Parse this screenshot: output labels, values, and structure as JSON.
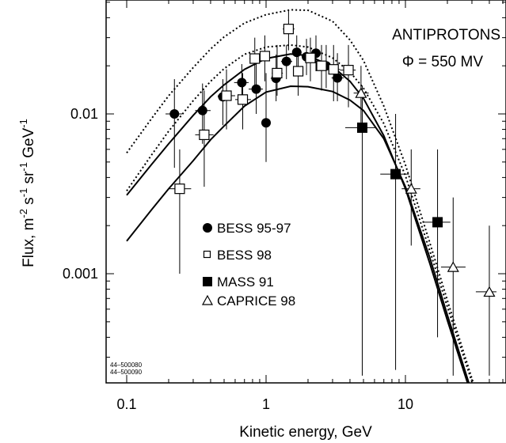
{
  "chart_data": {
    "type": "scatter",
    "title": "",
    "xlabel": "Kinetic energy, GeV",
    "ylabel_parts": [
      "Flux, m",
      "-2",
      " s",
      "-1",
      " sr",
      "-1",
      " GeV",
      "-1"
    ],
    "x_scale": "log",
    "y_scale": "log",
    "xlim": [
      0.1,
      45
    ],
    "ylim": [
      0.00012,
      0.06
    ],
    "x_tick_labels": [
      {
        "value": 0.1,
        "label": "0.1"
      },
      {
        "value": 1,
        "label": "1"
      },
      {
        "value": 10,
        "label": "10"
      }
    ],
    "y_tick_labels": [
      {
        "value": 0.001,
        "label": "0.001"
      },
      {
        "value": 0.01,
        "label": "0.01"
      }
    ],
    "annotations": {
      "species": "ANTIPROTONS",
      "potential": "Φ = 550 MV",
      "ids": [
        "44–500080",
        "44–500090"
      ]
    },
    "legend": [
      {
        "series": "BESS 95-97",
        "marker": "filled-circle",
        "label": "BESS 95-97"
      },
      {
        "series": "BESS 98",
        "marker": "open-square",
        "label": "BESS 98"
      },
      {
        "series": "MASS 91",
        "marker": "filled-square",
        "label": "MASS 91"
      },
      {
        "series": "CAPRICE 98",
        "marker": "open-triangle",
        "label": "CAPRICE 98"
      }
    ],
    "series": [
      {
        "name": "BESS 95-97",
        "marker": "filled-circle",
        "points": [
          {
            "x": 0.22,
            "y": 0.01,
            "xerr": [
              0.19,
              0.25
            ],
            "yerr": [
              0.0046,
              0.0165
            ]
          },
          {
            "x": 0.35,
            "y": 0.0105,
            "xerr": [
              0.31,
              0.4
            ],
            "yerr": [
              0.0065,
              0.0155
            ]
          },
          {
            "x": 0.49,
            "y": 0.0128,
            "xerr": [
              0.45,
              0.55
            ],
            "yerr": [
              0.0085,
              0.0165
            ]
          },
          {
            "x": 0.67,
            "y": 0.0157,
            "xerr": [
              0.59,
              0.75
            ],
            "yerr": [
              0.0115,
              0.0205
            ]
          },
          {
            "x": 0.85,
            "y": 0.0143,
            "xerr": [
              0.75,
              0.95
            ],
            "yerr": [
              0.01,
              0.021
            ]
          },
          {
            "x": 1.0,
            "y": 0.0088,
            "xerr": [
              0.93,
              1.08
            ],
            "yerr": [
              0.005,
              0.018
            ]
          },
          {
            "x": 1.18,
            "y": 0.0167,
            "xerr": [
              1.08,
              1.28
            ],
            "yerr": [
              0.012,
              0.0235
            ]
          },
          {
            "x": 1.4,
            "y": 0.0213,
            "xerr": [
              1.28,
              1.54
            ],
            "yerr": [
              0.0165,
              0.027
            ]
          },
          {
            "x": 1.66,
            "y": 0.0243,
            "xerr": [
              1.54,
              1.8
            ],
            "yerr": [
              0.0195,
              0.031
            ]
          },
          {
            "x": 1.95,
            "y": 0.0228,
            "xerr": [
              1.8,
              2.12
            ],
            "yerr": [
              0.0175,
              0.0295
            ]
          },
          {
            "x": 2.28,
            "y": 0.024,
            "xerr": [
              2.12,
              2.48
            ],
            "yerr": [
              0.0185,
              0.031
            ]
          },
          {
            "x": 2.7,
            "y": 0.02,
            "xerr": [
              2.48,
              2.95
            ],
            "yerr": [
              0.0145,
              0.027
            ]
          },
          {
            "x": 3.25,
            "y": 0.0168,
            "xerr": [
              2.95,
              3.6
            ],
            "yerr": [
              0.012,
              0.024
            ]
          }
        ]
      },
      {
        "name": "BESS 98",
        "marker": "open-square",
        "points": [
          {
            "x": 0.24,
            "y": 0.0034,
            "xerr": [
              0.2,
              0.29
            ],
            "yerr": [
              0.001,
              0.006
            ]
          },
          {
            "x": 0.36,
            "y": 0.0074,
            "xerr": [
              0.31,
              0.42
            ],
            "yerr": [
              0.0035,
              0.014
            ]
          },
          {
            "x": 0.52,
            "y": 0.013,
            "xerr": [
              0.45,
              0.6
            ],
            "yerr": [
              0.008,
              0.019
            ]
          },
          {
            "x": 0.68,
            "y": 0.0123,
            "xerr": [
              0.6,
              0.78
            ],
            "yerr": [
              0.008,
              0.018
            ]
          },
          {
            "x": 0.83,
            "y": 0.0222,
            "xerr": [
              0.76,
              0.92
            ],
            "yerr": [
              0.015,
              0.03
            ]
          },
          {
            "x": 0.98,
            "y": 0.023,
            "xerr": [
              0.92,
              1.05
            ],
            "yerr": [
              0.016,
              0.031
            ]
          },
          {
            "x": 1.2,
            "y": 0.018,
            "xerr": [
              1.1,
              1.32
            ],
            "yerr": [
              0.013,
              0.027
            ]
          },
          {
            "x": 1.45,
            "y": 0.034,
            "xerr": [
              1.32,
              1.6
            ],
            "yerr": [
              0.025,
              0.044
            ]
          },
          {
            "x": 1.7,
            "y": 0.0185,
            "xerr": [
              1.58,
              1.82
            ],
            "yerr": [
              0.013,
              0.026
            ]
          },
          {
            "x": 2.08,
            "y": 0.0224,
            "xerr": [
              1.9,
              2.28
            ],
            "yerr": [
              0.016,
              0.03
            ]
          },
          {
            "x": 2.5,
            "y": 0.02,
            "xerr": [
              2.28,
              2.74
            ],
            "yerr": [
              0.014,
              0.027
            ]
          },
          {
            "x": 3.05,
            "y": 0.019,
            "xerr": [
              2.74,
              3.4
            ],
            "yerr": [
              0.012,
              0.027
            ]
          },
          {
            "x": 3.9,
            "y": 0.0188,
            "xerr": [
              3.4,
              4.4
            ],
            "yerr": [
              0.011,
              0.027
            ]
          }
        ]
      },
      {
        "name": "MASS 91",
        "marker": "filled-square",
        "points": [
          {
            "x": 4.9,
            "y": 0.0082,
            "xerr": [
              3.7,
              6.1
            ],
            "yerr": [
              0.00023,
              0.015
            ]
          },
          {
            "x": 8.5,
            "y": 0.0042,
            "xerr": [
              6.6,
              10.6
            ],
            "yerr": [
              0.00025,
              0.01
            ]
          },
          {
            "x": 17.0,
            "y": 0.0021,
            "xerr": [
              13.5,
              21.0
            ],
            "yerr": [
              0.0004,
              0.006
            ]
          }
        ]
      },
      {
        "name": "CAPRICE 98",
        "marker": "open-triangle",
        "points": [
          {
            "x": 4.8,
            "y": 0.0135,
            "xerr": [
              4.25,
              5.45
            ],
            "yerr": [
              0.008,
              0.02
            ]
          },
          {
            "x": 11.0,
            "y": 0.0034,
            "xerr": [
              9.4,
              12.8
            ],
            "yerr": [
              0.0015,
              0.006
            ]
          },
          {
            "x": 22.0,
            "y": 0.0011,
            "xerr": [
              18.0,
              27.0
            ],
            "yerr": [
              0.00023,
              0.003
            ]
          },
          {
            "x": 40.0,
            "y": 0.00077,
            "xerr": [
              32.0,
              45.0
            ],
            "yerr": [
              0.00023,
              0.002
            ]
          }
        ]
      }
    ],
    "curves": [
      {
        "style": "dotted",
        "points": [
          [
            0.1,
            0.0057
          ],
          [
            0.15,
            0.0093
          ],
          [
            0.2,
            0.013
          ],
          [
            0.3,
            0.0195
          ],
          [
            0.4,
            0.0255
          ],
          [
            0.5,
            0.0303
          ],
          [
            0.7,
            0.037
          ],
          [
            1.0,
            0.0418
          ],
          [
            1.5,
            0.0448
          ],
          [
            2.0,
            0.0445
          ],
          [
            3.0,
            0.038
          ],
          [
            4.0,
            0.029
          ],
          [
            5.0,
            0.0216
          ],
          [
            7.0,
            0.0112
          ],
          [
            10.0,
            0.0048
          ],
          [
            15.0,
            0.00155
          ],
          [
            20.0,
            0.00068
          ],
          [
            30.0,
            0.00022
          ],
          [
            38.0,
            0.00012
          ]
        ]
      },
      {
        "style": "dotted",
        "points": [
          [
            0.1,
            0.0033
          ],
          [
            0.15,
            0.0055
          ],
          [
            0.2,
            0.0078
          ],
          [
            0.3,
            0.0121
          ],
          [
            0.4,
            0.016
          ],
          [
            0.5,
            0.0192
          ],
          [
            0.7,
            0.0236
          ],
          [
            1.0,
            0.0262
          ],
          [
            1.5,
            0.027
          ],
          [
            2.0,
            0.0262
          ],
          [
            3.0,
            0.0224
          ],
          [
            4.0,
            0.0183
          ],
          [
            5.0,
            0.0145
          ],
          [
            7.0,
            0.0087
          ],
          [
            10.0,
            0.0041
          ],
          [
            15.0,
            0.00138
          ],
          [
            20.0,
            0.00062
          ],
          [
            30.0,
            0.00021
          ],
          [
            37.0,
            0.00012
          ]
        ]
      },
      {
        "style": "solid",
        "points": [
          [
            0.1,
            0.0031
          ],
          [
            0.15,
            0.0048
          ],
          [
            0.2,
            0.0065
          ],
          [
            0.3,
            0.0098
          ],
          [
            0.4,
            0.0128
          ],
          [
            0.5,
            0.0152
          ],
          [
            0.7,
            0.019
          ],
          [
            1.0,
            0.0222
          ],
          [
            1.5,
            0.0237
          ],
          [
            2.0,
            0.0232
          ],
          [
            3.0,
            0.0198
          ],
          [
            4.0,
            0.016
          ],
          [
            5.0,
            0.0125
          ],
          [
            7.0,
            0.0073
          ],
          [
            10.0,
            0.0034
          ],
          [
            15.0,
            0.00115
          ],
          [
            20.0,
            0.00051
          ],
          [
            30.0,
            0.00017
          ],
          [
            34.0,
            0.00012
          ]
        ]
      },
      {
        "style": "solid",
        "points": [
          [
            0.1,
            0.0016
          ],
          [
            0.15,
            0.0025
          ],
          [
            0.2,
            0.0034
          ],
          [
            0.3,
            0.0051
          ],
          [
            0.4,
            0.0069
          ],
          [
            0.5,
            0.0084
          ],
          [
            0.7,
            0.0112
          ],
          [
            1.0,
            0.0137
          ],
          [
            1.5,
            0.0149
          ],
          [
            2.0,
            0.0148
          ],
          [
            3.0,
            0.0138
          ],
          [
            4.0,
            0.0122
          ],
          [
            5.0,
            0.0105
          ],
          [
            7.0,
            0.007
          ],
          [
            10.0,
            0.0035
          ],
          [
            15.0,
            0.00125
          ],
          [
            20.0,
            0.00055
          ],
          [
            30.0,
            0.00018
          ],
          [
            35.0,
            0.00012
          ]
        ]
      }
    ]
  }
}
